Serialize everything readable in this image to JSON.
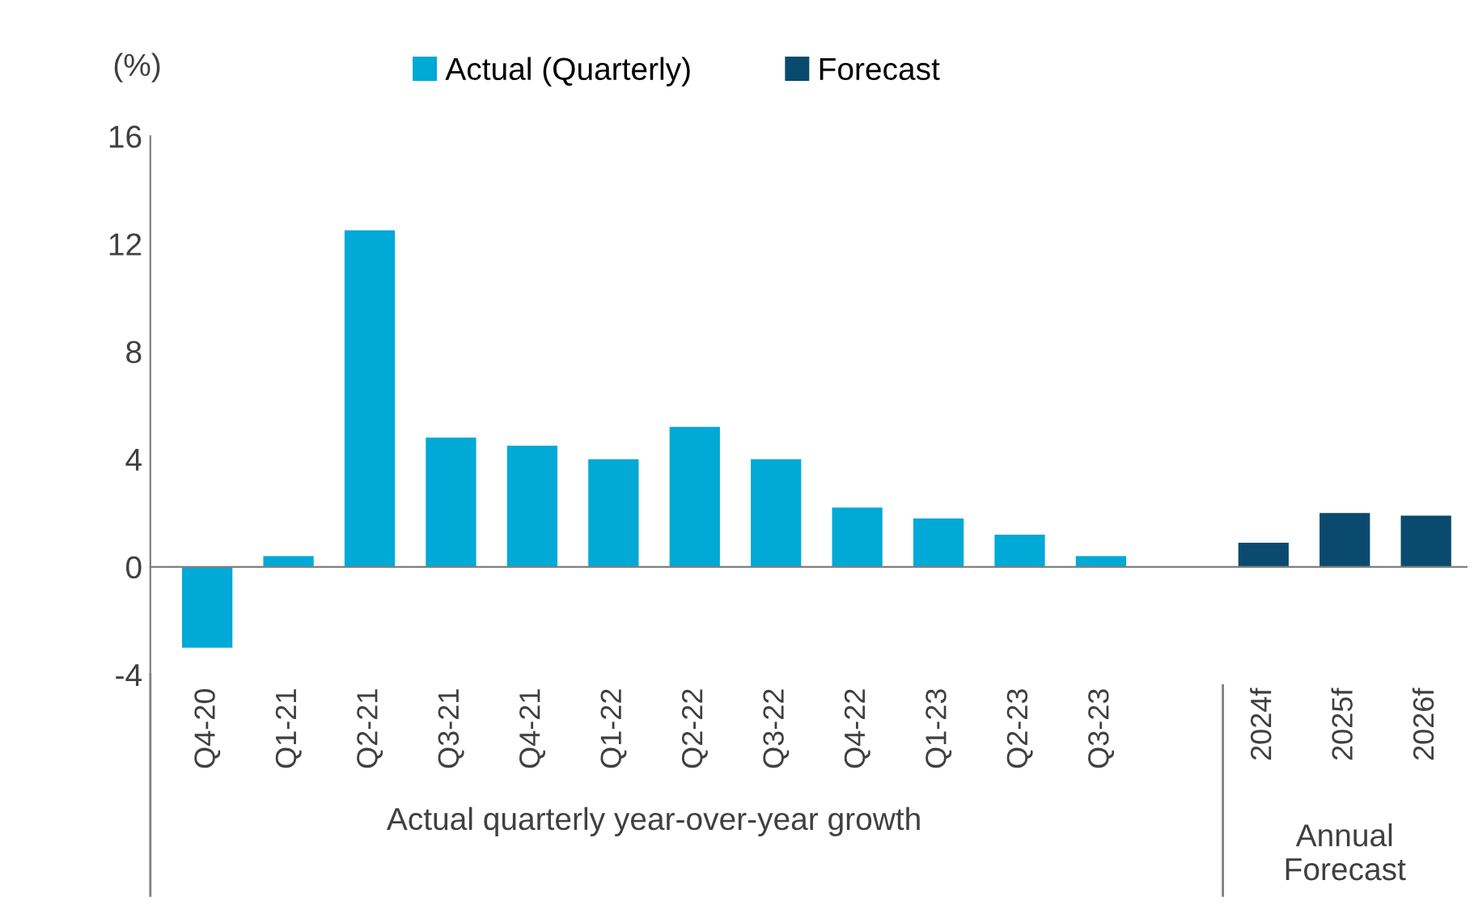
{
  "chart_data": {
    "type": "bar",
    "ylabel": "(%)",
    "categories": [
      "Q4-20",
      "Q1-21",
      "Q2-21",
      "Q3-21",
      "Q4-21",
      "Q1-22",
      "Q2-22",
      "Q3-22",
      "Q4-22",
      "Q1-23",
      "Q2-23",
      "Q3-23",
      null,
      "2024f",
      "2025f",
      "2026f"
    ],
    "series": [
      {
        "name": "Actual (Quarterly)",
        "color": "#00a9d6",
        "values": [
          -3.0,
          0.4,
          12.5,
          4.8,
          4.5,
          4.0,
          5.2,
          4.0,
          2.2,
          1.8,
          1.2,
          0.4,
          null,
          null,
          null,
          null
        ]
      },
      {
        "name": "Forecast",
        "color": "#0a4a6e",
        "values": [
          null,
          null,
          null,
          null,
          null,
          null,
          null,
          null,
          null,
          null,
          null,
          null,
          null,
          0.9,
          2.0,
          1.9
        ]
      }
    ],
    "ylim": [
      -4,
      16
    ],
    "yticks": [
      -4,
      0,
      4,
      8,
      12,
      16
    ],
    "legend": "top",
    "annotations": [
      "Actual quarterly year-over-year growth",
      "Annual\nForecast"
    ]
  }
}
